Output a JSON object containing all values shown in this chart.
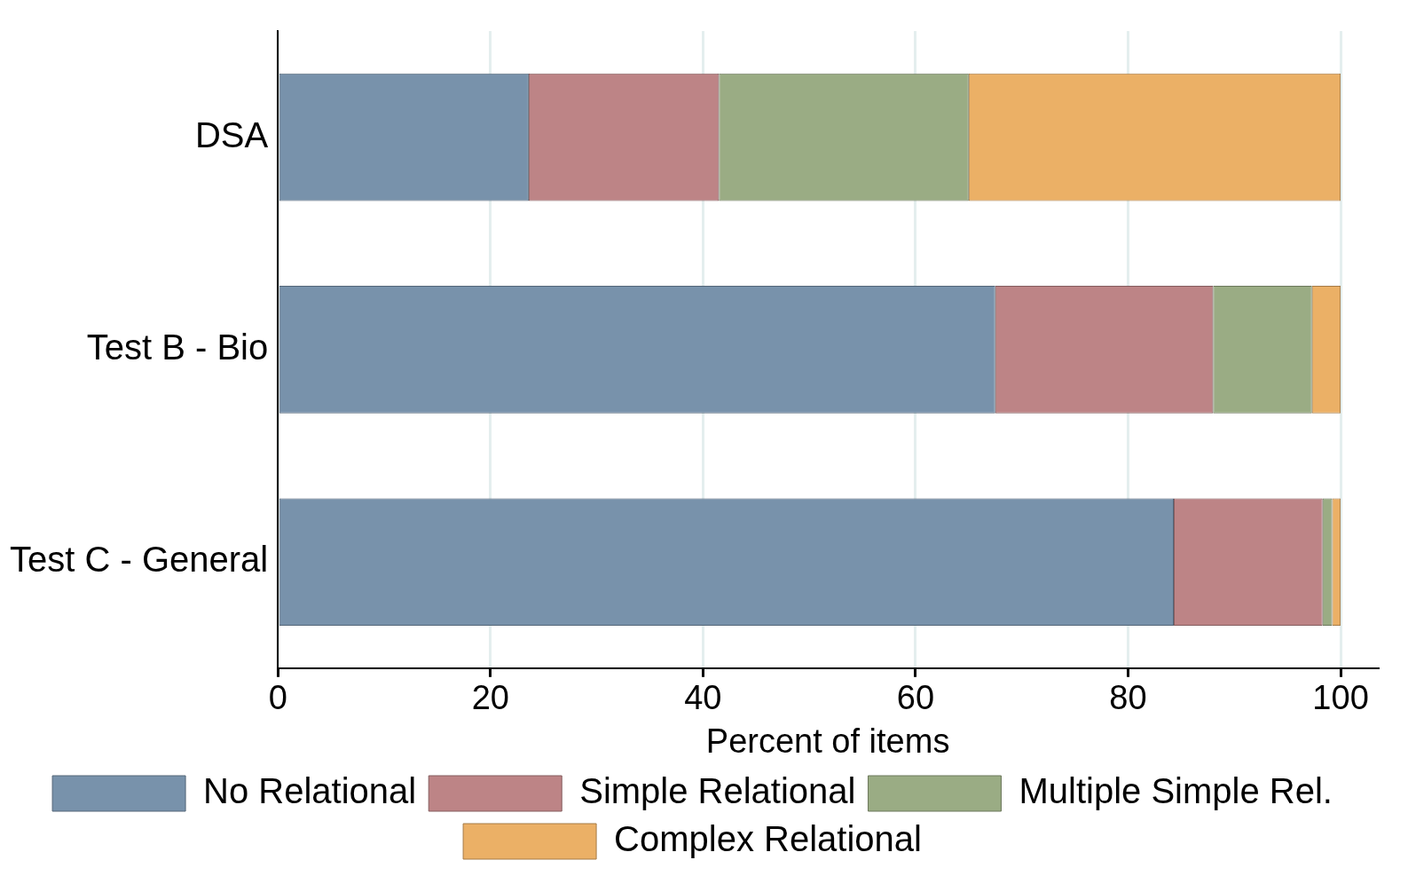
{
  "chart_data": {
    "type": "bar",
    "orientation": "horizontal",
    "stacked": true,
    "categories": [
      "DSA",
      "Test B - Bio",
      "Test C - General"
    ],
    "series": [
      {
        "name": "No Relational",
        "color": "#7892ab",
        "values": [
          23.6,
          67.5,
          84.3
        ]
      },
      {
        "name": "Simple Relational",
        "color": "#bd8486",
        "values": [
          17.9,
          20.5,
          14.0
        ]
      },
      {
        "name": "Multiple Simple Rel.",
        "color": "#9aac84",
        "values": [
          23.5,
          9.3,
          0.9
        ]
      },
      {
        "name": "Complex Relational",
        "color": "#ebb066",
        "values": [
          35.0,
          2.7,
          0.8
        ]
      }
    ],
    "xlabel": "Percent of items",
    "xlim": [
      0,
      103.5
    ],
    "xticks": [
      0,
      20,
      40,
      60,
      80,
      100
    ],
    "grid": "x",
    "legend": "bottom"
  }
}
